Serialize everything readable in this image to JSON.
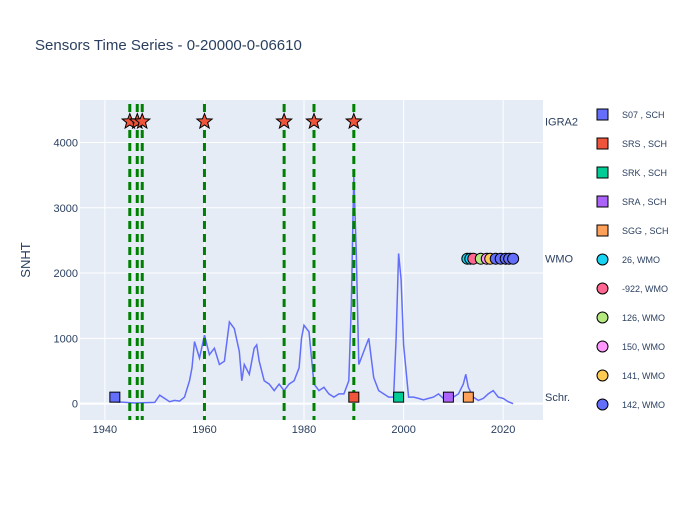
{
  "chart_data": {
    "type": "line",
    "title": "Sensors Time Series - 0-20000-0-06610",
    "xlabel": "",
    "ylabel": "SNHT",
    "xlim": [
      1935,
      2028
    ],
    "ylim": [
      -250,
      4650
    ],
    "x_ticks": [
      1940,
      1960,
      1980,
      2000,
      2020
    ],
    "y_ticks": [
      0,
      1000,
      2000,
      3000,
      4000
    ],
    "grid": true,
    "colors": {
      "plot_bg": "#e5ecf6",
      "grid": "#ffffff",
      "snht_line": "#636efa",
      "breakpoint_line": "#008000",
      "star": "#ef553b"
    },
    "row_labels": [
      {
        "text": "IGRA2",
        "y": 4320
      },
      {
        "text": "WMO",
        "y": 2220
      },
      {
        "text": "Schr.",
        "y": 100
      }
    ],
    "snht": {
      "x": [
        1942,
        1946,
        1950,
        1951,
        1952,
        1953,
        1954,
        1955,
        1956,
        1957,
        1957.5,
        1958,
        1959,
        1960,
        1961,
        1962,
        1963,
        1964,
        1965,
        1966,
        1967,
        1967.5,
        1968,
        1969,
        1970,
        1970.5,
        1971,
        1972,
        1973,
        1974,
        1975,
        1976,
        1977,
        1978,
        1979,
        1979.5,
        1980,
        1981,
        1982,
        1983,
        1984,
        1985,
        1986,
        1987,
        1988,
        1989,
        1989.5,
        1990,
        1990.5,
        1991,
        1992,
        1993,
        1994,
        1995,
        1996,
        1997,
        1998,
        1998.5,
        1999,
        1999.5,
        2000,
        2001,
        2002,
        2003,
        2004,
        2005,
        2006,
        2007,
        2008,
        2009,
        2010,
        2011,
        2012,
        2012.5,
        2013,
        2014,
        2015,
        2016,
        2017,
        2018,
        2019,
        2020,
        2021,
        2022
      ],
      "y": [
        30,
        10,
        20,
        130,
        80,
        30,
        50,
        40,
        100,
        350,
        550,
        950,
        700,
        1050,
        750,
        850,
        600,
        650,
        1250,
        1150,
        800,
        350,
        600,
        450,
        850,
        900,
        650,
        350,
        300,
        200,
        300,
        200,
        300,
        350,
        550,
        1000,
        1200,
        1100,
        300,
        200,
        250,
        150,
        100,
        150,
        150,
        350,
        1500,
        3500,
        2300,
        600,
        800,
        1000,
        400,
        200,
        150,
        100,
        100,
        1000,
        2300,
        1900,
        900,
        100,
        100,
        80,
        60,
        80,
        100,
        150,
        80,
        60,
        100,
        150,
        300,
        450,
        250,
        100,
        50,
        80,
        150,
        200,
        100,
        80,
        30,
        0
      ]
    },
    "breakpoints": [
      1945,
      1946.5,
      1947.5,
      1960,
      1976,
      1982,
      1990
    ],
    "igra2_stars": [
      1945,
      1946.5,
      1947.5,
      1960,
      1976,
      1982,
      1990
    ],
    "series": [
      {
        "name": "S07 , SCH",
        "color": "#636efa",
        "marker": "square",
        "points": [
          [
            1942,
            100
          ]
        ]
      },
      {
        "name": "SRS , SCH",
        "color": "#ef553b",
        "marker": "square",
        "points": [
          [
            1990,
            100
          ]
        ]
      },
      {
        "name": "SRK , SCH",
        "color": "#00cc96",
        "marker": "square",
        "points": [
          [
            1999,
            100
          ]
        ]
      },
      {
        "name": "SRA , SCH",
        "color": "#ab63fa",
        "marker": "square",
        "points": [
          [
            2009,
            100
          ]
        ]
      },
      {
        "name": "SGG , SCH",
        "color": "#ffa15a",
        "marker": "square",
        "points": [
          [
            2013,
            100
          ]
        ]
      },
      {
        "name": "26, WMO",
        "color": "#19d3f3",
        "marker": "circle",
        "points": [
          [
            2012.8,
            2220
          ],
          [
            2013.4,
            2220
          ]
        ]
      },
      {
        "name": "-922, WMO",
        "color": "#ff6692",
        "marker": "circle",
        "points": [
          [
            2014,
            2220
          ]
        ]
      },
      {
        "name": "126, WMO",
        "color": "#b6e880",
        "marker": "circle",
        "points": [
          [
            2015.5,
            2220
          ]
        ]
      },
      {
        "name": "150, WMO",
        "color": "#ff97ff",
        "marker": "circle",
        "points": [
          [
            2016.7,
            2220
          ]
        ]
      },
      {
        "name": "141, WMO",
        "color": "#fecb52",
        "marker": "circle",
        "points": [
          [
            2017.4,
            2220
          ]
        ]
      },
      {
        "name": "142, WMO",
        "color": "#636efa",
        "marker": "circle",
        "points": [
          [
            2018.5,
            2220
          ],
          [
            2019.5,
            2220
          ],
          [
            2020.5,
            2220
          ],
          [
            2021.2,
            2220
          ],
          [
            2022,
            2220
          ]
        ]
      }
    ],
    "legend_position": "right"
  }
}
